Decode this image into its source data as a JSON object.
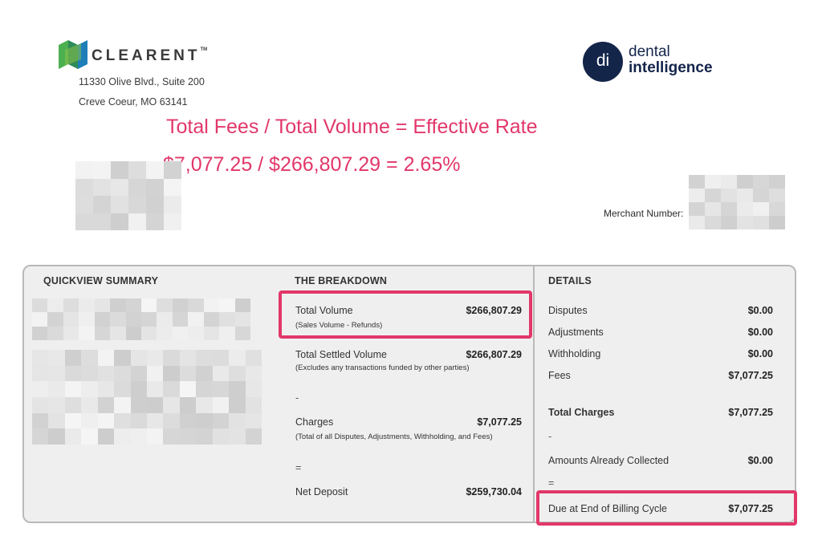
{
  "header": {
    "clearent_logo_text": "CLEARENT",
    "clearent_tm": "TM",
    "address_line1": "11330 Olive Blvd., Suite 200",
    "address_line2": "Creve Coeur, MO 63141",
    "partner_logo_initials": "di",
    "partner_logo_word1": "dental",
    "partner_logo_word2": "intelligence"
  },
  "annotation": {
    "formula": "Total Fees / Total Volume = Effective Rate",
    "calculation": "$7,077.25 / $266,807.29 = 2.65%"
  },
  "merchant": {
    "label": "Merchant Number:"
  },
  "summary": {
    "quickview_title": "QUICKVIEW SUMMARY",
    "breakdown_title": "THE BREAKDOWN",
    "details_title": "DETAILS",
    "breakdown": {
      "total_volume_label": "Total Volume",
      "total_volume_value": "$266,807.29",
      "total_volume_note": "(Sales Volume - Refunds)",
      "settled_volume_label": "Total Settled Volume",
      "settled_volume_value": "$266,807.29",
      "settled_volume_note": "(Excludes any transactions funded by other parties)",
      "minus_symbol": "-",
      "charges_label": "Charges",
      "charges_value": "$7,077.25",
      "charges_note": "(Total of all Disputes, Adjustments, Withholding, and Fees)",
      "equals_symbol": "=",
      "net_deposit_label": "Net Deposit",
      "net_deposit_value": "$259,730.04"
    },
    "details": {
      "disputes_label": "Disputes",
      "disputes_value": "$0.00",
      "adjustments_label": "Adjustments",
      "adjustments_value": "$0.00",
      "withholding_label": "Withholding",
      "withholding_value": "$0.00",
      "fees_label": "Fees",
      "fees_value": "$7,077.25",
      "total_charges_label": "Total Charges",
      "total_charges_value": "$7,077.25",
      "minus_symbol": "-",
      "collected_label": "Amounts Already Collected",
      "collected_value": "$0.00",
      "equals_symbol": "=",
      "due_label": "Due at End of Billing Cycle",
      "due_value": "$7,077.25"
    }
  },
  "colors": {
    "highlight": "#e2376a",
    "panel_bg": "#efefef",
    "panel_border": "#b9b9b9",
    "brand_navy": "#14254a",
    "clearent_green": "#4caf50",
    "clearent_blue": "#1e7fb8"
  }
}
